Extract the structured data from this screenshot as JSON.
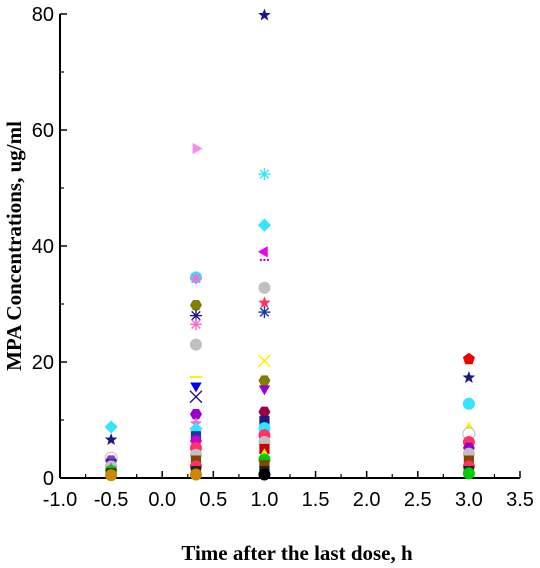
{
  "chart_data": {
    "type": "scatter",
    "title": "",
    "xlabel": "Time after the last dose, h",
    "ylabel": "MPA Concentrations, ug/ml",
    "xlim": [
      -1.0,
      3.5
    ],
    "ylim": [
      0,
      80
    ],
    "xticks": [
      "-1.0",
      "-0.5",
      "0.0",
      "0.5",
      "1.0",
      "1.5",
      "2.0",
      "2.5",
      "3.0",
      "3.5"
    ],
    "yticks": [
      "0",
      "20",
      "40",
      "60",
      "80"
    ],
    "grid": false,
    "legend": "none",
    "points": [
      {
        "x": -0.5,
        "y": 8.8,
        "marker": "diamond",
        "color": "#33e5ff"
      },
      {
        "x": -0.5,
        "y": 6.6,
        "marker": "star",
        "color": "#1a1a80"
      },
      {
        "x": -0.5,
        "y": 3.4,
        "marker": "circle",
        "color": "#ffffff"
      },
      {
        "x": -0.5,
        "y": 3.0,
        "marker": "hexagon",
        "color": "#9933cc"
      },
      {
        "x": -0.5,
        "y": 2.4,
        "marker": "square",
        "color": "#2233aa"
      },
      {
        "x": -0.5,
        "y": 2.0,
        "marker": "circle",
        "color": "#c0c0c0"
      },
      {
        "x": -0.5,
        "y": 1.6,
        "marker": "star",
        "color": "#ff33cc"
      },
      {
        "x": -0.5,
        "y": 1.2,
        "marker": "circle",
        "color": "#00cc00"
      },
      {
        "x": -0.5,
        "y": 0.8,
        "marker": "square",
        "color": "#222222"
      },
      {
        "x": -0.5,
        "y": 0.5,
        "marker": "circle",
        "color": "#cc8800"
      },
      {
        "x": 0.33,
        "y": 56.8,
        "marker": "triangle-right",
        "color": "#ff88ee"
      },
      {
        "x": 0.33,
        "y": 34.6,
        "marker": "circle",
        "color": "#33e5ff"
      },
      {
        "x": 0.33,
        "y": 34.4,
        "marker": "asterisk",
        "color": "#ff66cc"
      },
      {
        "x": 0.33,
        "y": 29.8,
        "marker": "hexagon",
        "color": "#808000"
      },
      {
        "x": 0.33,
        "y": 28.0,
        "marker": "asterisk",
        "color": "#1a1a80"
      },
      {
        "x": 0.33,
        "y": 26.5,
        "marker": "asterisk",
        "color": "#ff66cc"
      },
      {
        "x": 0.33,
        "y": 23.0,
        "marker": "circle",
        "color": "#c0c0c0"
      },
      {
        "x": 0.33,
        "y": 17.4,
        "marker": "dash",
        "color": "#ffee00"
      },
      {
        "x": 0.33,
        "y": 15.9,
        "marker": "triangle-down",
        "color": "#0000ee"
      },
      {
        "x": 0.33,
        "y": 14.0,
        "marker": "cross",
        "color": "#1a1a80"
      },
      {
        "x": 0.33,
        "y": 11.0,
        "marker": "hexagon",
        "color": "#9900cc"
      },
      {
        "x": 0.33,
        "y": 9.4,
        "marker": "star",
        "color": "#ff66cc"
      },
      {
        "x": 0.33,
        "y": 8.5,
        "marker": "diamond",
        "color": "#33e5ff"
      },
      {
        "x": 0.33,
        "y": 7.2,
        "marker": "square",
        "color": "#2233aa"
      },
      {
        "x": 0.33,
        "y": 6.4,
        "marker": "hexagon",
        "color": "#cc00cc"
      },
      {
        "x": 0.33,
        "y": 5.2,
        "marker": "circle",
        "color": "#ff3366"
      },
      {
        "x": 0.33,
        "y": 4.0,
        "marker": "circle",
        "color": "#c0c0c0"
      },
      {
        "x": 0.33,
        "y": 3.0,
        "marker": "square",
        "color": "#884400"
      },
      {
        "x": 0.33,
        "y": 2.0,
        "marker": "circle",
        "color": "#ff3366"
      },
      {
        "x": 0.33,
        "y": 1.2,
        "marker": "square",
        "color": "#222222"
      },
      {
        "x": 0.33,
        "y": 0.6,
        "marker": "circle",
        "color": "#cc8800"
      },
      {
        "x": 1.0,
        "y": 79.8,
        "marker": "star",
        "color": "#1a1a80"
      },
      {
        "x": 1.0,
        "y": 52.4,
        "marker": "asterisk",
        "color": "#33e5ff"
      },
      {
        "x": 1.0,
        "y": 43.6,
        "marker": "diamond",
        "color": "#33e5ff"
      },
      {
        "x": 1.0,
        "y": 39.0,
        "marker": "triangle-left",
        "color": "#ee00ee"
      },
      {
        "x": 1.0,
        "y": 37.6,
        "marker": "dots",
        "color": "#cc00cc"
      },
      {
        "x": 1.0,
        "y": 32.8,
        "marker": "circle",
        "color": "#c0c0c0"
      },
      {
        "x": 1.0,
        "y": 30.2,
        "marker": "star",
        "color": "#ff3366"
      },
      {
        "x": 1.0,
        "y": 28.6,
        "marker": "asterisk",
        "color": "#2233aa"
      },
      {
        "x": 1.0,
        "y": 20.2,
        "marker": "cross",
        "color": "#ffee00"
      },
      {
        "x": 1.0,
        "y": 16.8,
        "marker": "hexagon",
        "color": "#808000"
      },
      {
        "x": 1.0,
        "y": 15.4,
        "marker": "triangle-down",
        "color": "#9900cc"
      },
      {
        "x": 1.0,
        "y": 11.4,
        "marker": "hexagon",
        "color": "#990044"
      },
      {
        "x": 1.0,
        "y": 9.8,
        "marker": "square",
        "color": "#1a1a80"
      },
      {
        "x": 1.0,
        "y": 8.6,
        "marker": "circle",
        "color": "#33e5ff"
      },
      {
        "x": 1.0,
        "y": 7.4,
        "marker": "circle",
        "color": "#ff3366"
      },
      {
        "x": 1.0,
        "y": 6.2,
        "marker": "circle",
        "color": "#c0c0c0"
      },
      {
        "x": 1.0,
        "y": 5.0,
        "marker": "square",
        "color": "#cc0000"
      },
      {
        "x": 1.0,
        "y": 4.0,
        "marker": "triangle-up",
        "color": "#ffee00"
      },
      {
        "x": 1.0,
        "y": 3.2,
        "marker": "circle",
        "color": "#00cc00"
      },
      {
        "x": 1.0,
        "y": 2.2,
        "marker": "square",
        "color": "#884400"
      },
      {
        "x": 1.0,
        "y": 1.2,
        "marker": "square",
        "color": "#222222"
      },
      {
        "x": 1.0,
        "y": 0.6,
        "marker": "circle",
        "color": "#000000"
      },
      {
        "x": 3.0,
        "y": 20.5,
        "marker": "pentagon",
        "color": "#ee0000"
      },
      {
        "x": 3.0,
        "y": 17.3,
        "marker": "star",
        "color": "#1a1a80"
      },
      {
        "x": 3.0,
        "y": 12.8,
        "marker": "circle",
        "color": "#33e5ff"
      },
      {
        "x": 3.0,
        "y": 8.6,
        "marker": "triangle-up",
        "color": "#ffee00"
      },
      {
        "x": 3.0,
        "y": 7.6,
        "marker": "circle",
        "color": "#ffffff"
      },
      {
        "x": 3.0,
        "y": 6.2,
        "marker": "circle",
        "color": "#ff3366"
      },
      {
        "x": 3.0,
        "y": 5.2,
        "marker": "hexagon",
        "color": "#9900cc"
      },
      {
        "x": 3.0,
        "y": 4.2,
        "marker": "circle",
        "color": "#c0c0c0"
      },
      {
        "x": 3.0,
        "y": 3.0,
        "marker": "square",
        "color": "#884400"
      },
      {
        "x": 3.0,
        "y": 2.0,
        "marker": "circle",
        "color": "#ff3366"
      },
      {
        "x": 3.0,
        "y": 1.2,
        "marker": "square",
        "color": "#222222"
      },
      {
        "x": 3.0,
        "y": 0.8,
        "marker": "circle",
        "color": "#00cc00"
      }
    ]
  }
}
